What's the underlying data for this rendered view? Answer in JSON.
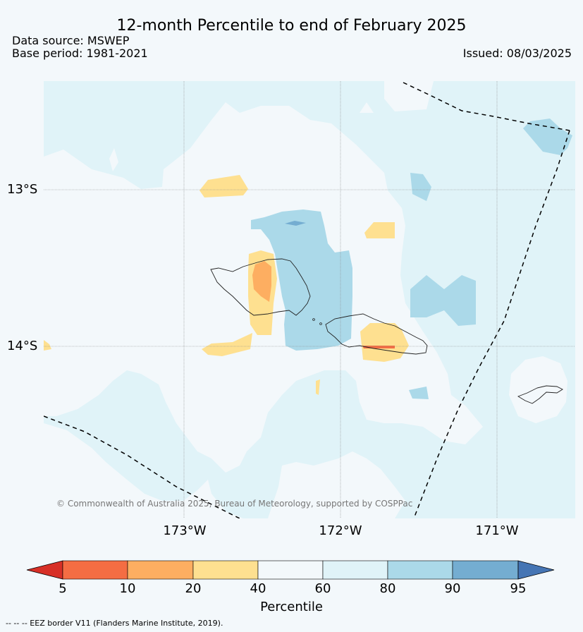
{
  "header": {
    "title": "12-month Percentile to end of February 2025",
    "data_source": "Data source: MSWEP",
    "base_period": "Base period: 1981-2021",
    "issued": "Issued: 08/03/2025"
  },
  "map": {
    "lat_labels": [
      "13°S",
      "14°S"
    ],
    "lon_labels": [
      "173°W",
      "172°W",
      "171°W"
    ],
    "copyright": "© Commonwealth of Australia 2025, Bureau of Meteorology, supported by COSPPac"
  },
  "colorbar": {
    "ticks": [
      "5",
      "10",
      "20",
      "40",
      "60",
      "80",
      "90",
      "95"
    ],
    "label": "Percentile",
    "colors": [
      "#d73027",
      "#f46d43",
      "#fdae61",
      "#fee090",
      "#f3f8fb",
      "#e0f3f8",
      "#abd9e9",
      "#74add1",
      "#4575b4"
    ]
  },
  "footer": {
    "eez_note": "--  --  -- EEZ border V11 (Flanders Marine Institute, 2019)."
  }
}
